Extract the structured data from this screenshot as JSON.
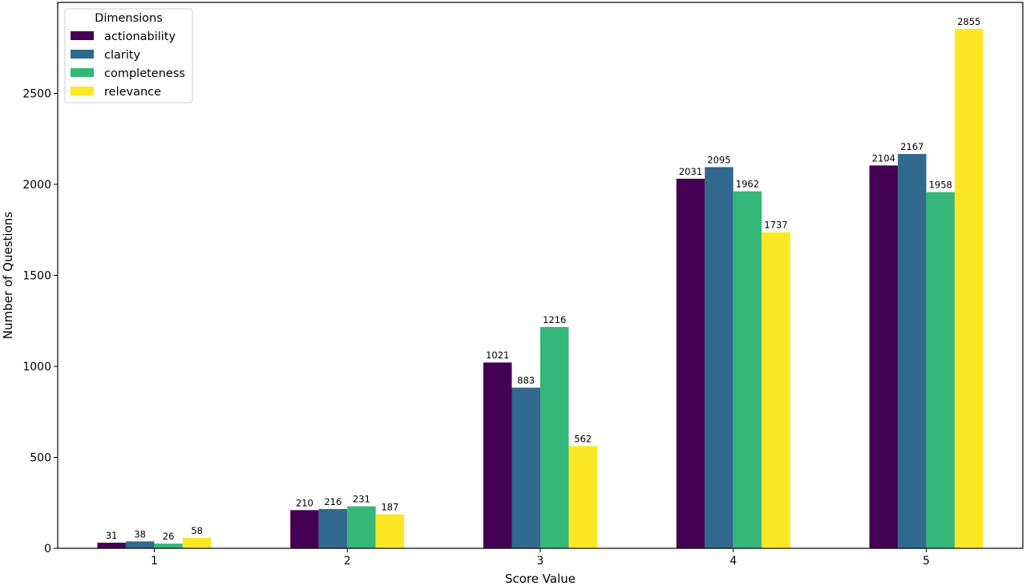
{
  "chart_data": {
    "type": "bar",
    "title": "",
    "xlabel": "Score Value",
    "ylabel": "Number of Questions",
    "categories": [
      "1",
      "2",
      "3",
      "4",
      "5"
    ],
    "ylim": [
      0,
      3000
    ],
    "yticks": [
      0,
      500,
      1000,
      1500,
      2000,
      2500
    ],
    "grid": false,
    "legend": {
      "title": "Dimensions",
      "placement": "top-left"
    },
    "series": [
      {
        "name": "actionability",
        "color": "#440154",
        "values": [
          31,
          210,
          1021,
          2031,
          2104
        ]
      },
      {
        "name": "clarity",
        "color": "#31688e",
        "values": [
          38,
          216,
          883,
          2095,
          2167
        ]
      },
      {
        "name": "completeness",
        "color": "#35b779",
        "values": [
          26,
          231,
          1216,
          1962,
          1958
        ]
      },
      {
        "name": "relevance",
        "color": "#fde725",
        "values": [
          58,
          187,
          562,
          1737,
          2855
        ]
      }
    ]
  }
}
